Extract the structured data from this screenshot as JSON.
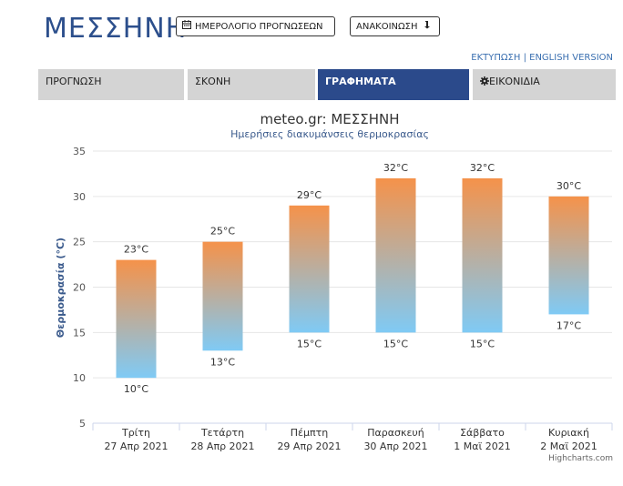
{
  "header": {
    "city": "ΜΕΣΣΗΝΗ",
    "calendar_button": "ΗΜΕΡΟΛΟΓΙΟ ΠΡΟΓΝΩΣΕΩΝ",
    "calendar_icon": "calendar-icon",
    "announce_button": "ΑΝΑΚΟΙΝΩΣΗ",
    "announce_icon": "arrow-down-icon",
    "print_link": "ΕΚΤΥΠΩΣΗ",
    "separator": "|",
    "english_link": "ENGLISH VERSION"
  },
  "tabs": [
    {
      "label": "ΠΡΟΓΝΩΣΗ",
      "active": false
    },
    {
      "label": "ΣΚΟΝΗ",
      "active": false
    },
    {
      "label": "ΓΡΑΦΗΜΑΤΑ",
      "active": true
    },
    {
      "label": "ΕΙΚΟΝΙΔΙΑ",
      "active": false,
      "icon": "gear-icon"
    }
  ],
  "colors": {
    "tab_active": "#2b4a8b",
    "tab_inactive": "#d4d4d4",
    "bar_top": "#f5924a",
    "bar_bottom": "#7fcaf5",
    "axis_title": "#3a5a8c"
  },
  "chart_data": {
    "type": "bar",
    "subtype": "columnrange",
    "title": "meteo.gr: ΜΕΣΣΗΝΗ",
    "subtitle": "Ημερήσιες διακυμάνσεις θερμοκρασίας",
    "ylabel": "Θερμοκρασία (°C)",
    "ylim": [
      5,
      35
    ],
    "yticks": [
      5,
      10,
      15,
      20,
      25,
      30,
      35
    ],
    "grid": true,
    "categories": [
      [
        "Τρίτη",
        "27 Απρ 2021"
      ],
      [
        "Τετάρτη",
        "28 Απρ 2021"
      ],
      [
        "Πέμπτη",
        "29 Απρ 2021"
      ],
      [
        "Παρασκευή",
        "30 Απρ 2021"
      ],
      [
        "Σάββατο",
        "1 Μαϊ 2021"
      ],
      [
        "Κυριακή",
        "2 Μαϊ 2021"
      ]
    ],
    "low": [
      10,
      13,
      15,
      15,
      15,
      17
    ],
    "high": [
      23,
      25,
      29,
      32,
      32,
      30
    ],
    "label_suffix": "°C",
    "credits": "Highcharts.com"
  }
}
